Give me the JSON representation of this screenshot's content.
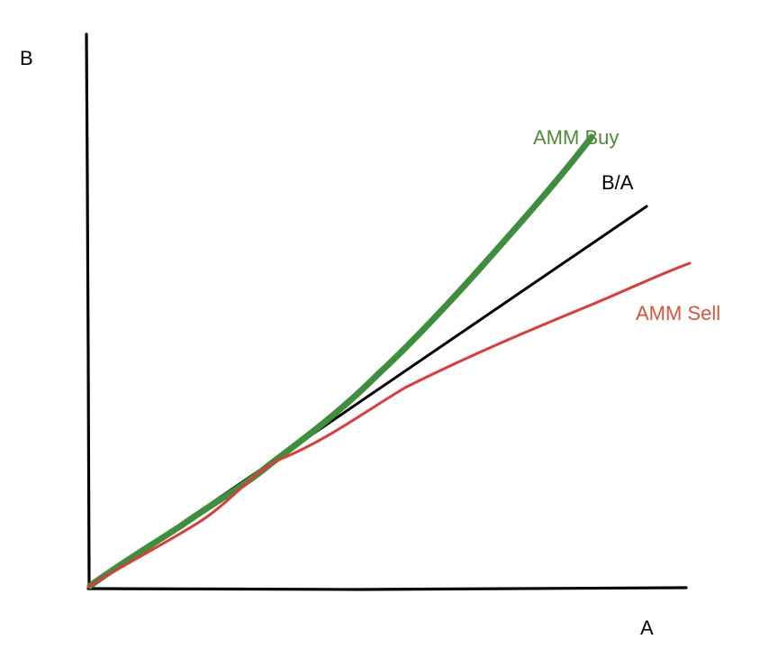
{
  "axes": {
    "y_label": "B",
    "x_label": "A",
    "color": "#000000"
  },
  "lines": {
    "buy": {
      "label": "AMM Buy",
      "color": "#3e8e3e"
    },
    "ratio": {
      "label": "B/A",
      "color": "#000000"
    },
    "sell": {
      "label": "AMM Sell",
      "color": "#e03a3a"
    }
  },
  "label_colors": {
    "buy": "#4e8a34",
    "sell": "#e0533b"
  }
}
